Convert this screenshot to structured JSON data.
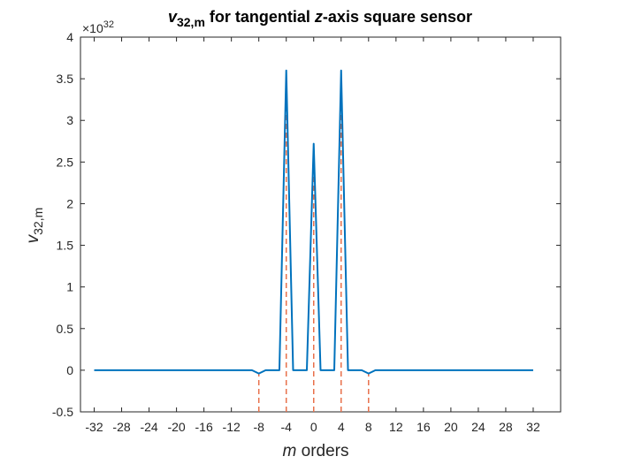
{
  "chart_data": {
    "type": "line",
    "title_var": "v",
    "title_sub": "32,m",
    "title_rest": " for tangential ",
    "title_axis": "z",
    "title_end": "-axis square sensor",
    "xlabel_var": "m",
    "xlabel_rest": " orders",
    "ylabel_var": "v",
    "ylabel_sub": "32,m",
    "exponent_prefix": "×10",
    "exponent_power": "32",
    "xlim": [
      -34,
      36
    ],
    "ylim": [
      -0.5,
      4
    ],
    "xticks": [
      -32,
      -28,
      -24,
      -20,
      -16,
      -12,
      -8,
      -4,
      0,
      4,
      8,
      12,
      16,
      20,
      24,
      28,
      32
    ],
    "xtick_labels": [
      "-32",
      "-28",
      "-24",
      "-20",
      "-16",
      "-12",
      "-8",
      "-4",
      "0",
      "4",
      "8",
      "12",
      "16",
      "20",
      "24",
      "28",
      "32"
    ],
    "yticks": [
      -0.5,
      0,
      0.5,
      1,
      1.5,
      2,
      2.5,
      3,
      3.5,
      4
    ],
    "ytick_labels": [
      "-0.5",
      "0",
      "0.5",
      "1",
      "1.5",
      "2",
      "2.5",
      "3",
      "3.5",
      "4"
    ],
    "series": [
      {
        "style": "solid",
        "color": "#0072BD",
        "x": [
          -32,
          -30,
          -28,
          -26,
          -24,
          -22,
          -20,
          -18,
          -16,
          -14,
          -12,
          -10,
          -9,
          -8,
          -7,
          -6,
          -5,
          -4,
          -3,
          -2,
          -1,
          0,
          1,
          2,
          3,
          4,
          5,
          6,
          7,
          8,
          9,
          10,
          12,
          14,
          16,
          18,
          20,
          22,
          24,
          26,
          28,
          30,
          32
        ],
        "y": [
          0,
          0,
          0,
          0,
          0,
          0,
          0,
          0,
          0,
          0,
          0,
          0,
          0,
          -0.04,
          0,
          0,
          0,
          3.6,
          0,
          0,
          0,
          2.72,
          0,
          0,
          0,
          3.6,
          0,
          0,
          0,
          -0.04,
          0,
          0,
          0,
          0,
          0,
          0,
          0,
          0,
          0,
          0,
          0,
          0,
          0
        ]
      },
      {
        "style": "dashed-stem",
        "color": "#E8704A",
        "x": [
          -8,
          -4,
          0,
          4,
          8
        ],
        "y": [
          -0.04,
          3.6,
          2.72,
          3.6,
          -0.04
        ]
      }
    ],
    "grid": false
  }
}
